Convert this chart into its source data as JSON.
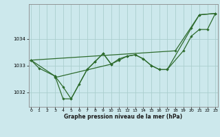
{
  "title": "Graphe pression niveau de la mer (hPa)",
  "bg_color": "#cce8ec",
  "line_color": "#2d6b2d",
  "grid_color": "#aacece",
  "x_ticks": [
    0,
    1,
    2,
    3,
    4,
    5,
    6,
    7,
    8,
    9,
    10,
    11,
    12,
    13,
    14,
    15,
    16,
    17,
    18,
    19,
    20,
    21,
    22,
    23
  ],
  "y_ticks": [
    1032,
    1033,
    1034
  ],
  "ylim": [
    1031.45,
    1035.3
  ],
  "xlim": [
    -0.3,
    23.3
  ],
  "series": {
    "line1_x": [
      0,
      1,
      3,
      4,
      5,
      7,
      8,
      9,
      10,
      11,
      12,
      13,
      14,
      15,
      16,
      17,
      20,
      21,
      23
    ],
    "line1_y": [
      1033.2,
      1032.9,
      1032.6,
      1031.75,
      1031.75,
      1032.85,
      1033.15,
      1033.45,
      1033.05,
      1033.25,
      1033.35,
      1033.4,
      1033.25,
      1033.0,
      1032.85,
      1032.85,
      1034.4,
      1034.9,
      1034.95
    ],
    "line2_x": [
      0,
      3,
      4,
      5,
      6,
      7,
      8,
      9,
      10
    ],
    "line2_y": [
      1033.2,
      1032.6,
      1032.2,
      1031.75,
      1032.3,
      1032.85,
      1033.15,
      1033.45,
      1033.05
    ],
    "line3_x": [
      3,
      10,
      11,
      12,
      13,
      14,
      15,
      16,
      17,
      19,
      20,
      21,
      22,
      23
    ],
    "line3_y": [
      1032.55,
      1033.05,
      1033.2,
      1033.35,
      1033.4,
      1033.25,
      1033.0,
      1032.85,
      1032.85,
      1033.55,
      1034.1,
      1034.35,
      1034.35,
      1034.95
    ],
    "line4_x": [
      0,
      18,
      21,
      23
    ],
    "line4_y": [
      1033.2,
      1033.55,
      1034.9,
      1034.95
    ]
  }
}
